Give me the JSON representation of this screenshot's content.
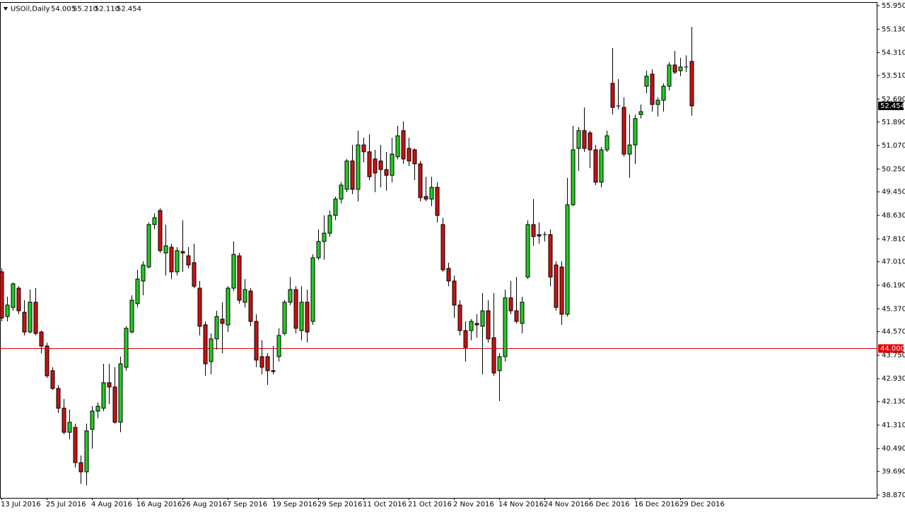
{
  "chart_data": {
    "type": "candlestick",
    "title": "USOil,Daily",
    "header_values": [
      "54.005",
      "55.210",
      "52.110",
      "52.454"
    ],
    "up_color": "#22cc22",
    "down_color": "#cc1111",
    "outline_color": "#000000",
    "ylim": [
      38.77,
      56.05
    ],
    "yticks": [
      {
        "value": 55.95,
        "label": "55.950"
      },
      {
        "value": 55.13,
        "label": "55.130"
      },
      {
        "value": 54.31,
        "label": "54.310"
      },
      {
        "value": 53.51,
        "label": "53.510"
      },
      {
        "value": 52.69,
        "label": "52.690"
      },
      {
        "value": 51.89,
        "label": "51.890"
      },
      {
        "value": 51.07,
        "label": "51.070"
      },
      {
        "value": 50.25,
        "label": "50.250"
      },
      {
        "value": 49.45,
        "label": "49.450"
      },
      {
        "value": 48.63,
        "label": "48.630"
      },
      {
        "value": 47.81,
        "label": "47.810"
      },
      {
        "value": 47.01,
        "label": "47.010"
      },
      {
        "value": 46.19,
        "label": "46.190"
      },
      {
        "value": 45.37,
        "label": "45.370"
      },
      {
        "value": 44.57,
        "label": "44.570"
      },
      {
        "value": 43.75,
        "label": "43.750"
      },
      {
        "value": 42.93,
        "label": "42.930"
      },
      {
        "value": 42.13,
        "label": "42.130"
      },
      {
        "value": 41.31,
        "label": "41.310"
      },
      {
        "value": 40.49,
        "label": "40.490"
      },
      {
        "value": 39.69,
        "label": "39.690"
      },
      {
        "value": 38.87,
        "label": "38.870"
      }
    ],
    "last_price": {
      "value": 52.454,
      "label": "52.454"
    },
    "hline": {
      "value": 44,
      "label": "44.000",
      "color": "#e00000"
    },
    "categories": [
      "13 Jul 2016",
      null,
      null,
      null,
      null,
      null,
      null,
      null,
      "25 Jul 2016",
      null,
      null,
      null,
      null,
      null,
      null,
      null,
      "4 Aug 2016",
      null,
      null,
      null,
      null,
      null,
      null,
      null,
      "16 Aug 2016",
      null,
      null,
      null,
      null,
      null,
      null,
      null,
      "26 Aug 2016",
      null,
      null,
      null,
      null,
      null,
      null,
      null,
      "7 Sep 2016",
      null,
      null,
      null,
      null,
      null,
      null,
      null,
      "19 Sep 2016",
      null,
      null,
      null,
      null,
      null,
      null,
      null,
      "29 Sep 2016",
      null,
      null,
      null,
      null,
      null,
      null,
      null,
      "11 Oct 2016",
      null,
      null,
      null,
      null,
      null,
      null,
      null,
      "21 Oct 2016",
      null,
      null,
      null,
      null,
      null,
      null,
      null,
      "2 Nov 2016",
      null,
      null,
      null,
      null,
      null,
      null,
      null,
      "14 Nov 2016",
      null,
      null,
      null,
      null,
      null,
      null,
      null,
      "24 Nov 2016",
      null,
      null,
      null,
      null,
      null,
      null,
      null,
      "6 Dec 2016",
      null,
      null,
      null,
      null,
      null,
      null,
      null,
      "16 Dec 2016",
      null,
      null,
      null,
      null,
      null,
      null,
      null,
      "29 Dec 2016",
      null,
      null
    ],
    "ohlc": [
      [
        46.66,
        46.78,
        44.93,
        45.05
      ],
      [
        45.1,
        45.79,
        44.93,
        45.5
      ],
      [
        45.42,
        46.29,
        45.3,
        46.24
      ],
      [
        46.09,
        46.16,
        45.18,
        45.3
      ],
      [
        45.25,
        45.67,
        44.44,
        44.56
      ],
      [
        44.56,
        46.04,
        44.51,
        45.6
      ],
      [
        45.6,
        46.09,
        44.44,
        44.51
      ],
      [
        44.56,
        44.61,
        43.82,
        44.07
      ],
      [
        44.07,
        44.19,
        42.96,
        43.03
      ],
      [
        43.21,
        43.33,
        42.54,
        42.59
      ],
      [
        42.59,
        42.71,
        41.73,
        41.9
      ],
      [
        41.9,
        42.22,
        40.99,
        41.06
      ],
      [
        41.06,
        41.85,
        40.81,
        41.41
      ],
      [
        41.23,
        41.36,
        39.83,
        40.0
      ],
      [
        40.0,
        40.25,
        39.26,
        39.68
      ],
      [
        39.68,
        41.36,
        39.21,
        41.11
      ],
      [
        41.16,
        41.97,
        40.49,
        41.8
      ],
      [
        41.8,
        42.1,
        41.55,
        41.97
      ],
      [
        41.9,
        43.45,
        41.8,
        42.79
      ],
      [
        42.79,
        43.45,
        42.05,
        42.64
      ],
      [
        42.64,
        43.33,
        41.36,
        41.41
      ],
      [
        41.41,
        43.7,
        41.06,
        43.45
      ],
      [
        43.33,
        44.76,
        43.21,
        44.69
      ],
      [
        44.56,
        45.84,
        44.51,
        45.67
      ],
      [
        45.55,
        46.73,
        45.42,
        46.41
      ],
      [
        46.34,
        47.03,
        45.84,
        46.9
      ],
      [
        46.83,
        48.38,
        46.78,
        48.31
      ],
      [
        48.31,
        48.7,
        48.14,
        48.55
      ],
      [
        48.8,
        48.88,
        47.32,
        47.4
      ],
      [
        47.32,
        48.31,
        46.53,
        47.57
      ],
      [
        47.52,
        47.64,
        46.41,
        46.66
      ],
      [
        46.66,
        47.52,
        46.53,
        47.4
      ],
      [
        47.37,
        48.46,
        46.66,
        47.32
      ],
      [
        47.22,
        47.52,
        46.78,
        46.9
      ],
      [
        46.98,
        47.64,
        46.09,
        46.16
      ],
      [
        46.09,
        46.34,
        44.44,
        44.76
      ],
      [
        44.81,
        44.93,
        43.03,
        43.45
      ],
      [
        43.53,
        44.51,
        43.08,
        44.32
      ],
      [
        44.32,
        45.3,
        43.95,
        45.1
      ],
      [
        45.01,
        45.6,
        43.82,
        44.86
      ],
      [
        44.81,
        46.16,
        44.56,
        46.09
      ],
      [
        46.09,
        47.72,
        45.99,
        47.27
      ],
      [
        47.22,
        47.32,
        45.55,
        45.67
      ],
      [
        45.6,
        46.41,
        45.42,
        46.04
      ],
      [
        45.99,
        46.09,
        44.76,
        44.93
      ],
      [
        44.93,
        45.18,
        43.33,
        43.58
      ],
      [
        43.7,
        44.27,
        43.08,
        43.33
      ],
      [
        43.7,
        43.82,
        42.71,
        43.21
      ],
      [
        43.21,
        44.07,
        43.08,
        43.18
      ],
      [
        43.7,
        44.69,
        43.53,
        44.44
      ],
      [
        44.51,
        45.67,
        44.44,
        45.6
      ],
      [
        45.6,
        46.48,
        45.5,
        46.04
      ],
      [
        46.04,
        46.16,
        44.51,
        44.69
      ],
      [
        44.61,
        46.16,
        44.27,
        45.6
      ],
      [
        45.6,
        46.04,
        44.19,
        44.56
      ],
      [
        44.93,
        47.27,
        44.81,
        47.15
      ],
      [
        47.15,
        48.14,
        47.08,
        47.72
      ],
      [
        47.72,
        48.63,
        47.08,
        48.01
      ],
      [
        48.01,
        48.8,
        47.89,
        48.63
      ],
      [
        48.63,
        49.29,
        48.46,
        49.2
      ],
      [
        49.2,
        49.79,
        49.05,
        49.69
      ],
      [
        49.54,
        50.6,
        49.44,
        50.53
      ],
      [
        50.53,
        51.09,
        49.37,
        49.54
      ],
      [
        49.54,
        51.59,
        49.12,
        51.09
      ],
      [
        51.09,
        51.34,
        50.48,
        50.85
      ],
      [
        50.85,
        51.46,
        49.86,
        49.98
      ],
      [
        50.6,
        50.92,
        49.44,
        50.11
      ],
      [
        50.53,
        51.09,
        49.61,
        50.23
      ],
      [
        50.23,
        50.85,
        49.49,
        50.03
      ],
      [
        50.03,
        51.34,
        49.79,
        50.77
      ],
      [
        50.68,
        51.76,
        50.58,
        51.41
      ],
      [
        51.59,
        51.91,
        50.43,
        50.6
      ],
      [
        50.97,
        51.34,
        50.35,
        50.53
      ],
      [
        50.92,
        50.97,
        49.86,
        50.43
      ],
      [
        50.43,
        50.53,
        49.12,
        49.25
      ],
      [
        49.29,
        49.98,
        49.12,
        49.2
      ],
      [
        49.2,
        49.98,
        48.95,
        49.61
      ],
      [
        49.61,
        49.79,
        48.38,
        48.63
      ],
      [
        48.31,
        48.55,
        46.66,
        46.73
      ],
      [
        46.78,
        46.98,
        46.16,
        46.34
      ],
      [
        46.34,
        46.53,
        45.05,
        45.5
      ],
      [
        45.5,
        45.67,
        44.44,
        44.61
      ],
      [
        44.61,
        44.93,
        43.53,
        44.02
      ],
      [
        44.61,
        45.01,
        44.27,
        44.93
      ],
      [
        44.86,
        45.18,
        44.36,
        44.81
      ],
      [
        44.76,
        45.92,
        43.08,
        45.3
      ],
      [
        45.3,
        45.67,
        44.19,
        44.32
      ],
      [
        44.36,
        45.92,
        43.03,
        43.13
      ],
      [
        43.21,
        43.82,
        42.15,
        43.7
      ],
      [
        43.7,
        46.04,
        43.53,
        45.75
      ],
      [
        45.75,
        46.34,
        45.18,
        45.3
      ],
      [
        45.3,
        46.48,
        44.86,
        44.93
      ],
      [
        44.86,
        45.79,
        44.51,
        45.6
      ],
      [
        46.48,
        48.46,
        46.41,
        48.31
      ],
      [
        48.31,
        49.2,
        47.57,
        47.89
      ],
      [
        47.96,
        48.38,
        47.64,
        47.91
      ],
      [
        47.96,
        48.06,
        47.72,
        47.94
      ],
      [
        47.96,
        48.14,
        46.16,
        46.48
      ],
      [
        46.9,
        47.03,
        45.3,
        45.42
      ],
      [
        46.83,
        47.03,
        44.81,
        45.18
      ],
      [
        45.18,
        49.94,
        45.1,
        49.0
      ],
      [
        49.0,
        51.76,
        48.95,
        50.92
      ],
      [
        50.97,
        51.71,
        50.18,
        51.59
      ],
      [
        51.59,
        52.4,
        50.85,
        50.97
      ],
      [
        51.51,
        51.59,
        50.28,
        50.92
      ],
      [
        50.92,
        51.09,
        49.69,
        49.79
      ],
      [
        49.79,
        51.02,
        49.61,
        50.92
      ],
      [
        50.92,
        51.59,
        50.85,
        51.41
      ],
      [
        53.24,
        54.47,
        52.15,
        52.4
      ],
      [
        52.45,
        53.39,
        52.33,
        52.45
      ],
      [
        52.4,
        52.75,
        50.68,
        50.77
      ],
      [
        50.77,
        52.15,
        49.94,
        51.09
      ],
      [
        51.09,
        52.15,
        50.43,
        52.01
      ],
      [
        52.15,
        52.5,
        52.01,
        52.25
      ],
      [
        53.14,
        53.68,
        52.89,
        53.49
      ],
      [
        53.56,
        53.73,
        52.25,
        52.5
      ],
      [
        52.5,
        52.75,
        52.08,
        52.65
      ],
      [
        52.65,
        53.24,
        52.25,
        53.14
      ],
      [
        53.14,
        53.98,
        52.99,
        53.88
      ],
      [
        53.88,
        54.37,
        53.56,
        53.63
      ],
      [
        53.68,
        54.13,
        53.49,
        53.81
      ],
      [
        53.81,
        54.22,
        53.63,
        53.81
      ],
      [
        54.005,
        55.21,
        52.11,
        52.454
      ]
    ]
  }
}
